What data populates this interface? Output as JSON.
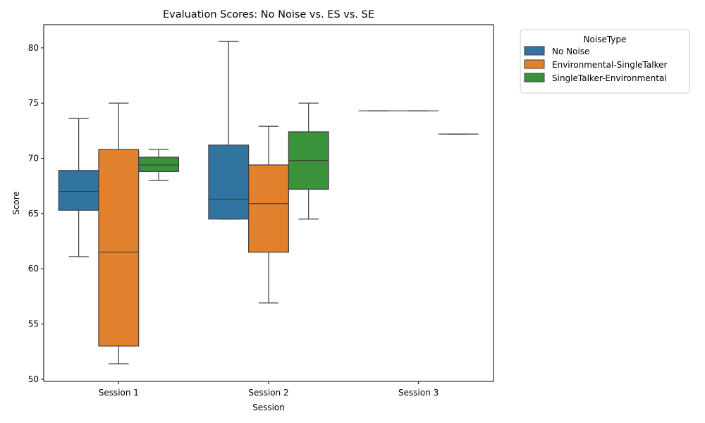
{
  "chart_data": {
    "type": "box",
    "title": "Evaluation Scores: No Noise vs. ES vs. SE",
    "xlabel": "Session",
    "ylabel": "Score",
    "ylim": [
      49.8,
      82.1
    ],
    "yticks": [
      50,
      55,
      60,
      65,
      70,
      75,
      80
    ],
    "categories": [
      "Session 1",
      "Session 2",
      "Session 3"
    ],
    "grid": false,
    "legend": {
      "title": "NoiseType",
      "placement": "outside-top-right"
    },
    "series": [
      {
        "name": "No Noise",
        "color": "#3274a1",
        "boxes": [
          {
            "whisker_low": 61.1,
            "q1": 65.3,
            "median": 67.0,
            "q3": 68.9,
            "whisker_high": 73.6
          },
          {
            "whisker_low": 64.5,
            "q1": 64.5,
            "median": 66.3,
            "q3": 71.2,
            "whisker_high": 80.6
          },
          {
            "whisker_low": 74.3,
            "q1": 74.3,
            "median": 74.3,
            "q3": 74.3,
            "whisker_high": 74.3
          }
        ]
      },
      {
        "name": "Environmental-SingleTalker",
        "color": "#e1812c",
        "boxes": [
          {
            "whisker_low": 51.4,
            "q1": 53.0,
            "median": 61.5,
            "q3": 70.8,
            "whisker_high": 75.0
          },
          {
            "whisker_low": 56.9,
            "q1": 61.5,
            "median": 65.9,
            "q3": 69.4,
            "whisker_high": 72.9
          },
          {
            "whisker_low": 74.3,
            "q1": 74.3,
            "median": 74.3,
            "q3": 74.3,
            "whisker_high": 74.3
          }
        ]
      },
      {
        "name": "SingleTalker-Environmental",
        "color": "#3a923a",
        "boxes": [
          {
            "whisker_low": 68.0,
            "q1": 68.8,
            "median": 69.4,
            "q3": 70.1,
            "whisker_high": 70.8
          },
          {
            "whisker_low": 64.5,
            "q1": 67.2,
            "median": 69.8,
            "q3": 72.4,
            "whisker_high": 75.0
          },
          {
            "whisker_low": 72.2,
            "q1": 72.2,
            "median": 72.2,
            "q3": 72.2,
            "whisker_high": 72.2
          }
        ]
      }
    ]
  }
}
